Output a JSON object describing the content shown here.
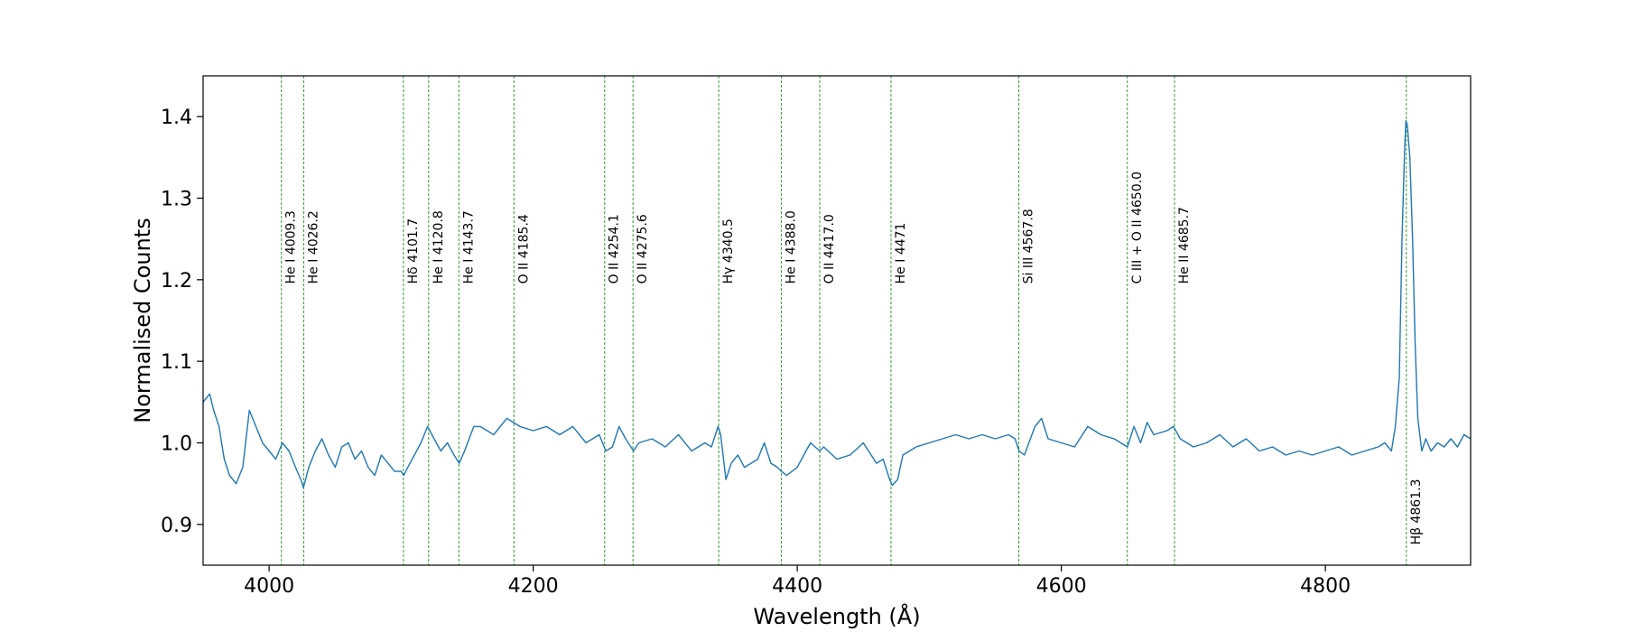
{
  "chart_data": {
    "type": "line",
    "xlabel": "Wavelength (Å)",
    "ylabel": "Normalised Counts",
    "xlim": [
      3950,
      4910
    ],
    "ylim": [
      0.85,
      1.45
    ],
    "x_ticks": [
      4000,
      4200,
      4400,
      4600,
      4800
    ],
    "x_tick_labels": [
      "4000",
      "4200",
      "4400",
      "4600",
      "4800"
    ],
    "y_ticks": [
      0.9,
      1.0,
      1.1,
      1.2,
      1.3,
      1.4
    ],
    "y_tick_labels": [
      "0.9",
      "1.0",
      "1.1",
      "1.2",
      "1.3",
      "1.4"
    ],
    "grid": false,
    "colors": {
      "spectrum": "#1f77b4",
      "line_marker": "#2ca02c"
    },
    "series": [
      {
        "x": [
          3950,
          3955,
          3958,
          3962,
          3966,
          3970,
          3975,
          3980,
          3985,
          3990,
          3995,
          4000,
          4005,
          4010,
          4015,
          4020,
          4024,
          4026,
          4030,
          4035,
          4040,
          4045,
          4050,
          4055,
          4060,
          4065,
          4070,
          4075,
          4080,
          4085,
          4090,
          4095,
          4100,
          4102,
          4105,
          4110,
          4115,
          4120,
          4125,
          4130,
          4135,
          4140,
          4144,
          4148,
          4155,
          4160,
          4170,
          4180,
          4185,
          4190,
          4200,
          4210,
          4220,
          4230,
          4240,
          4250,
          4255,
          4260,
          4265,
          4270,
          4276,
          4280,
          4290,
          4300,
          4310,
          4320,
          4330,
          4335,
          4340,
          4342,
          4346,
          4350,
          4355,
          4360,
          4370,
          4375,
          4380,
          4385,
          4388,
          4392,
          4400,
          4405,
          4410,
          4417,
          4420,
          4430,
          4440,
          4450,
          4460,
          4465,
          4470,
          4472,
          4476,
          4480,
          4490,
          4500,
          4510,
          4520,
          4530,
          4540,
          4550,
          4560,
          4565,
          4568,
          4572,
          4580,
          4585,
          4590,
          4600,
          4610,
          4620,
          4630,
          4640,
          4650,
          4655,
          4660,
          4665,
          4670,
          4680,
          4685,
          4690,
          4700,
          4710,
          4720,
          4730,
          4740,
          4750,
          4760,
          4770,
          4780,
          4790,
          4800,
          4810,
          4820,
          4830,
          4840,
          4845,
          4850,
          4853,
          4856,
          4858,
          4860,
          4861,
          4862,
          4864,
          4866,
          4868,
          4870,
          4873,
          4876,
          4880,
          4885,
          4890,
          4895,
          4900,
          4905,
          4910
        ],
        "y": [
          1.05,
          1.06,
          1.04,
          1.02,
          0.98,
          0.96,
          0.95,
          0.97,
          1.04,
          1.02,
          1.0,
          0.99,
          0.98,
          1.0,
          0.99,
          0.97,
          0.955,
          0.945,
          0.97,
          0.99,
          1.005,
          0.985,
          0.97,
          0.995,
          1.0,
          0.98,
          0.99,
          0.97,
          0.96,
          0.985,
          0.975,
          0.965,
          0.965,
          0.96,
          0.97,
          0.985,
          1.0,
          1.02,
          1.005,
          0.99,
          1.0,
          0.985,
          0.975,
          0.99,
          1.02,
          1.02,
          1.01,
          1.03,
          1.025,
          1.02,
          1.015,
          1.02,
          1.01,
          1.02,
          1.0,
          1.01,
          0.99,
          0.995,
          1.02,
          1.005,
          0.99,
          1.0,
          1.005,
          0.995,
          1.01,
          0.99,
          1.0,
          0.995,
          1.02,
          1.01,
          0.955,
          0.975,
          0.985,
          0.97,
          0.98,
          1.0,
          0.975,
          0.97,
          0.965,
          0.96,
          0.97,
          0.985,
          1.0,
          0.99,
          0.995,
          0.98,
          0.985,
          1.0,
          0.975,
          0.98,
          0.955,
          0.948,
          0.955,
          0.985,
          0.995,
          1.0,
          1.005,
          1.01,
          1.005,
          1.01,
          1.005,
          1.01,
          1.005,
          0.99,
          0.985,
          1.02,
          1.03,
          1.005,
          1.0,
          0.995,
          1.02,
          1.01,
          1.005,
          0.995,
          1.02,
          1.0,
          1.025,
          1.01,
          1.015,
          1.02,
          1.005,
          0.995,
          1.0,
          1.01,
          0.995,
          1.005,
          0.99,
          0.995,
          0.985,
          0.99,
          0.985,
          0.99,
          0.995,
          0.985,
          0.99,
          0.995,
          1.0,
          0.99,
          1.02,
          1.08,
          1.25,
          1.36,
          1.395,
          1.39,
          1.35,
          1.25,
          1.12,
          1.03,
          0.99,
          1.005,
          0.99,
          1.0,
          0.995,
          1.005,
          0.995,
          1.01,
          1.005
        ]
      }
    ],
    "annotations": [
      {
        "wavelength": 4009.3,
        "label": "He I 4009.3",
        "position": "upper"
      },
      {
        "wavelength": 4026.2,
        "label": "He I 4026.2",
        "position": "upper"
      },
      {
        "wavelength": 4101.7,
        "label": "Hδ 4101.7",
        "position": "upper"
      },
      {
        "wavelength": 4120.8,
        "label": "He I 4120.8",
        "position": "upper"
      },
      {
        "wavelength": 4143.7,
        "label": "He I 4143.7",
        "position": "upper"
      },
      {
        "wavelength": 4185.4,
        "label": "O II 4185.4",
        "position": "upper"
      },
      {
        "wavelength": 4254.1,
        "label": "O II 4254.1",
        "position": "upper"
      },
      {
        "wavelength": 4275.6,
        "label": "O II 4275.6",
        "position": "upper"
      },
      {
        "wavelength": 4340.5,
        "label": "Hγ 4340.5",
        "position": "upper"
      },
      {
        "wavelength": 4388.0,
        "label": "He I 4388.0",
        "position": "upper"
      },
      {
        "wavelength": 4417.0,
        "label": "O II 4417.0",
        "position": "upper"
      },
      {
        "wavelength": 4471.0,
        "label": "He I 4471",
        "position": "upper"
      },
      {
        "wavelength": 4567.8,
        "label": "Si III 4567.8",
        "position": "upper"
      },
      {
        "wavelength": 4650.0,
        "label": "C III + O II 4650.0",
        "position": "upper"
      },
      {
        "wavelength": 4685.7,
        "label": "He II 4685.7",
        "position": "upper"
      },
      {
        "wavelength": 4861.3,
        "label": "Hβ 4861.3",
        "position": "lower"
      }
    ]
  }
}
